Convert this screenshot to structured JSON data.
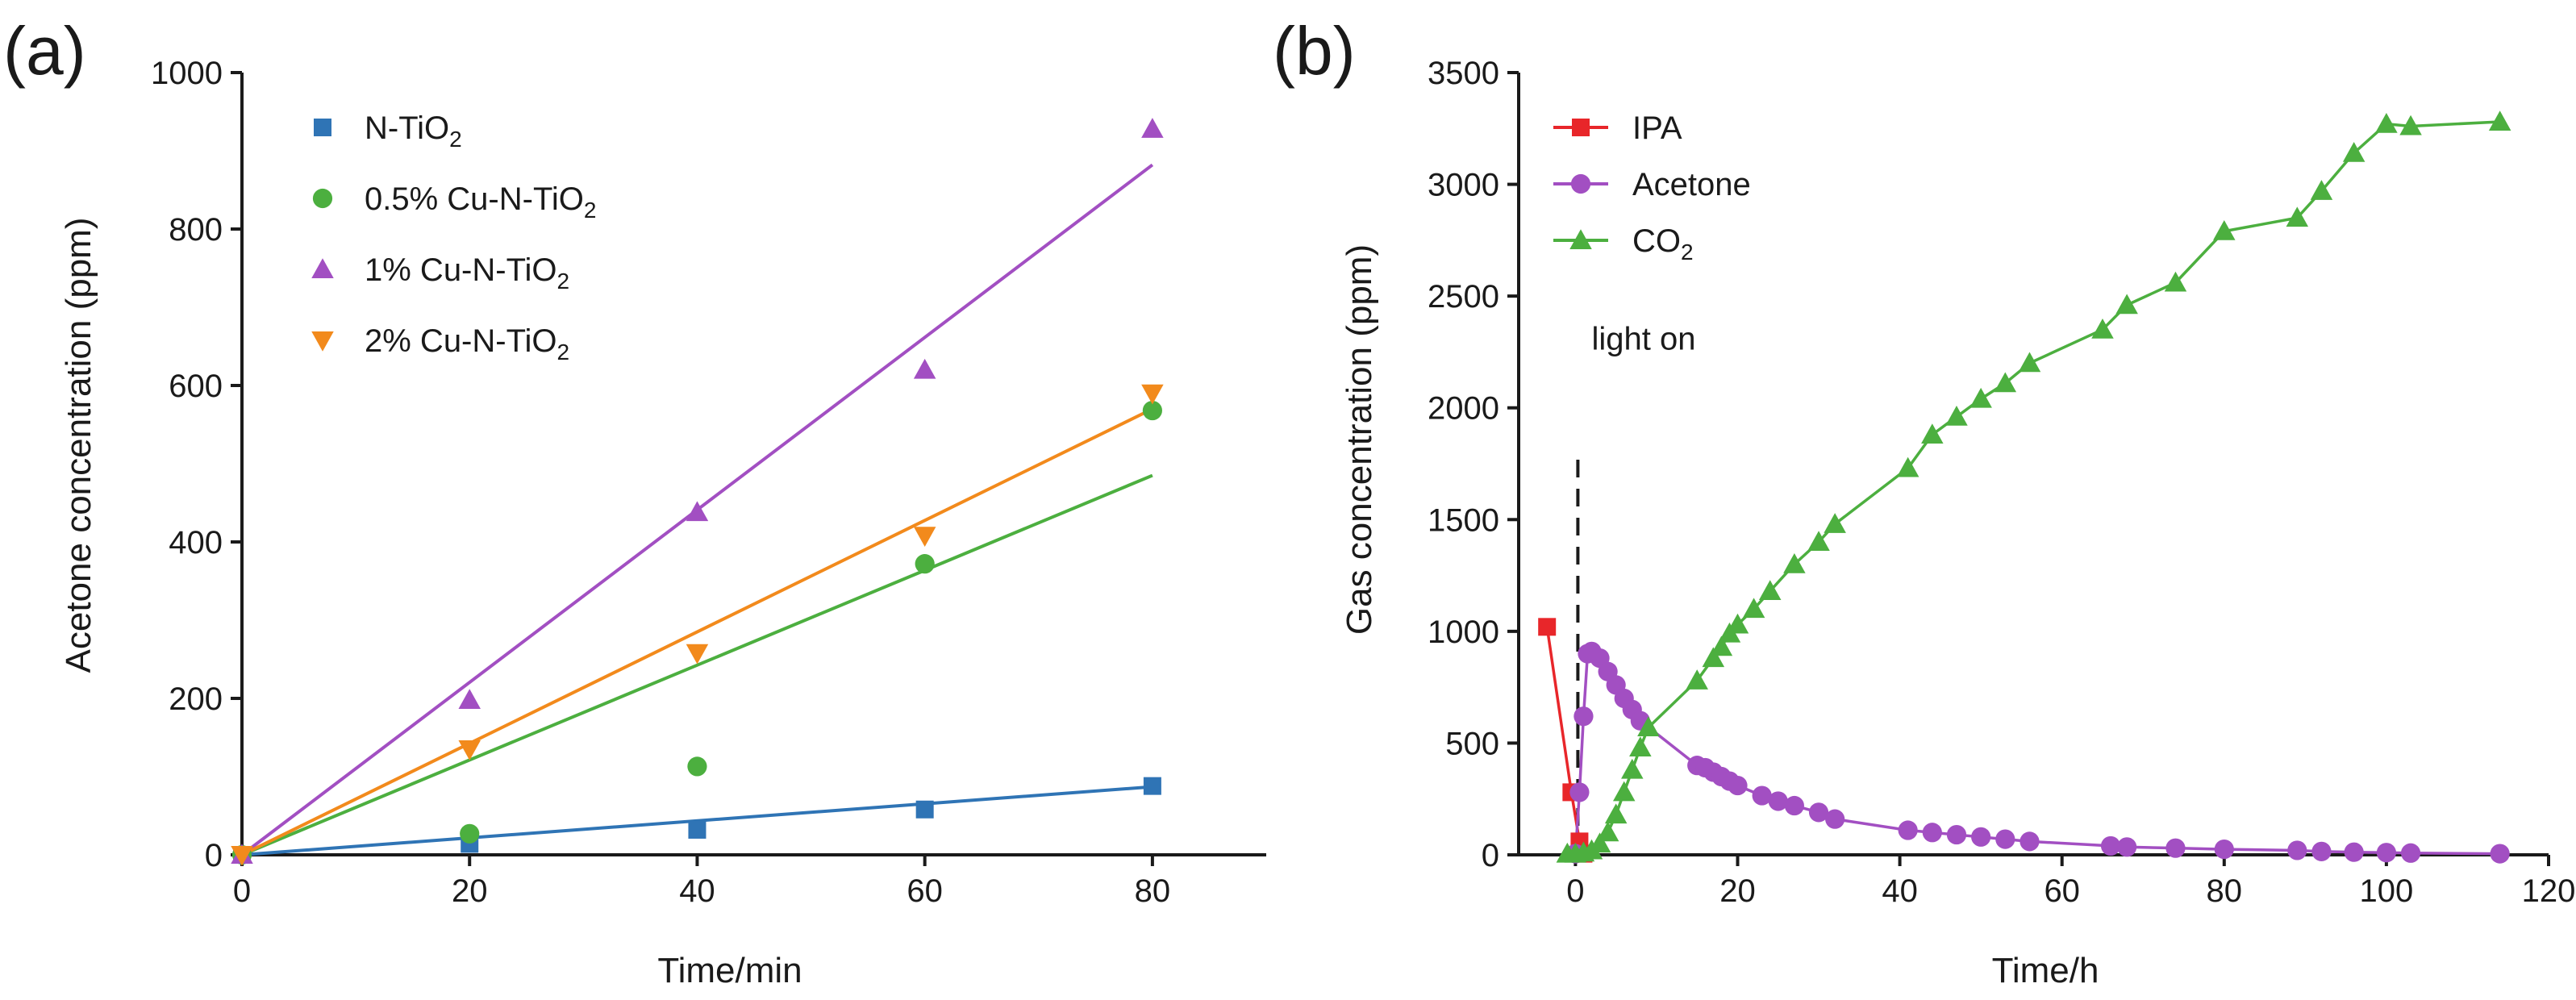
{
  "chart_data": [
    {
      "type": "scatter",
      "panel_label": "(a)",
      "title": "",
      "xlabel": "Time/min",
      "ylabel": "Acetone concentration (ppm)",
      "xlim": [
        0,
        90
      ],
      "ylim": [
        0,
        1000
      ],
      "xticks": [
        0,
        20,
        40,
        60,
        80
      ],
      "yticks": [
        0,
        200,
        400,
        600,
        800,
        1000
      ],
      "legend_position": "top-left",
      "series": [
        {
          "name": "N-TiO",
          "name_sub": "2",
          "color": "#2f74b5",
          "marker": "square",
          "x": [
            0,
            20,
            40,
            60,
            80
          ],
          "y": [
            0,
            14,
            32,
            58,
            88
          ],
          "fit": [
            [
              0,
              0
            ],
            [
              80,
              87
            ]
          ]
        },
        {
          "name": "0.5% Cu-N-TiO",
          "name_sub": "2",
          "color": "#4caf3f",
          "marker": "circle",
          "x": [
            0,
            20,
            40,
            60,
            80
          ],
          "y": [
            0,
            27,
            113,
            372,
            568
          ],
          "fit": [
            [
              0,
              0
            ],
            [
              80,
              485
            ]
          ]
        },
        {
          "name": "1% Cu-N-TiO",
          "name_sub": "2",
          "color": "#a24fc2",
          "marker": "triangle-up",
          "x": [
            0,
            20,
            40,
            60,
            80
          ],
          "y": [
            0,
            198,
            438,
            620,
            928
          ],
          "fit": [
            [
              0,
              0
            ],
            [
              80,
              882
            ]
          ]
        },
        {
          "name": "2% Cu-N-TiO",
          "name_sub": "2",
          "color": "#f28a1c",
          "marker": "triangle-down",
          "x": [
            0,
            20,
            40,
            60,
            80
          ],
          "y": [
            0,
            135,
            258,
            408,
            590
          ],
          "fit": [
            [
              0,
              0
            ],
            [
              80,
              570
            ]
          ]
        }
      ]
    },
    {
      "type": "line",
      "panel_label": "(b)",
      "title": "",
      "xlabel": "Time/h",
      "ylabel": "Gas concentration (ppm)",
      "xlim": [
        -7,
        120
      ],
      "ylim": [
        0,
        3500
      ],
      "xticks": [
        0,
        20,
        40,
        60,
        80,
        100,
        120
      ],
      "yticks": [
        0,
        500,
        1000,
        1500,
        2000,
        2500,
        3000,
        3500
      ],
      "legend_position": "top-left",
      "annotation": {
        "text": "light on",
        "x": 2,
        "y": 2260
      },
      "vline": {
        "x": 0.3,
        "y_from": 0,
        "y_to": 1800
      },
      "series": [
        {
          "name": "IPA",
          "name_sub": "",
          "color": "#e8262a",
          "marker": "square",
          "x": [
            -3.5,
            -0.5,
            0.5,
            1
          ],
          "y": [
            1020,
            280,
            60,
            5
          ]
        },
        {
          "name": "Acetone",
          "name_sub": "",
          "color": "#a24fc2",
          "marker": "circle",
          "x": [
            0,
            0.5,
            1,
            1.5,
            2,
            3,
            4,
            5,
            6,
            7,
            8,
            15,
            16,
            17,
            18,
            19,
            20,
            23,
            25,
            27,
            30,
            32,
            41,
            44,
            47,
            50,
            53,
            56,
            66,
            68,
            74,
            80,
            89,
            92,
            96,
            100,
            103,
            114
          ],
          "y": [
            5,
            280,
            620,
            900,
            910,
            880,
            820,
            760,
            700,
            650,
            600,
            400,
            390,
            370,
            350,
            330,
            310,
            265,
            240,
            220,
            190,
            160,
            110,
            100,
            90,
            80,
            70,
            60,
            40,
            35,
            30,
            25,
            20,
            15,
            12,
            10,
            8,
            5
          ]
        },
        {
          "name": "CO",
          "name_sub": "2",
          "color": "#4caf3f",
          "marker": "triangle-up",
          "x": [
            -1,
            0,
            1,
            2,
            3,
            4,
            5,
            6,
            7,
            8,
            9,
            15,
            17,
            18,
            19,
            20,
            22,
            24,
            27,
            30,
            32,
            41,
            44,
            47,
            50,
            53,
            56,
            65,
            68,
            74,
            80,
            89,
            92,
            96,
            100,
            103,
            114
          ],
          "y": [
            5,
            5,
            10,
            20,
            50,
            100,
            180,
            280,
            380,
            480,
            570,
            780,
            880,
            930,
            990,
            1030,
            1100,
            1180,
            1300,
            1400,
            1480,
            1730,
            1880,
            1960,
            2040,
            2110,
            2200,
            2350,
            2460,
            2560,
            2790,
            2850,
            2970,
            3140,
            3270,
            3260,
            3280
          ]
        }
      ]
    }
  ]
}
